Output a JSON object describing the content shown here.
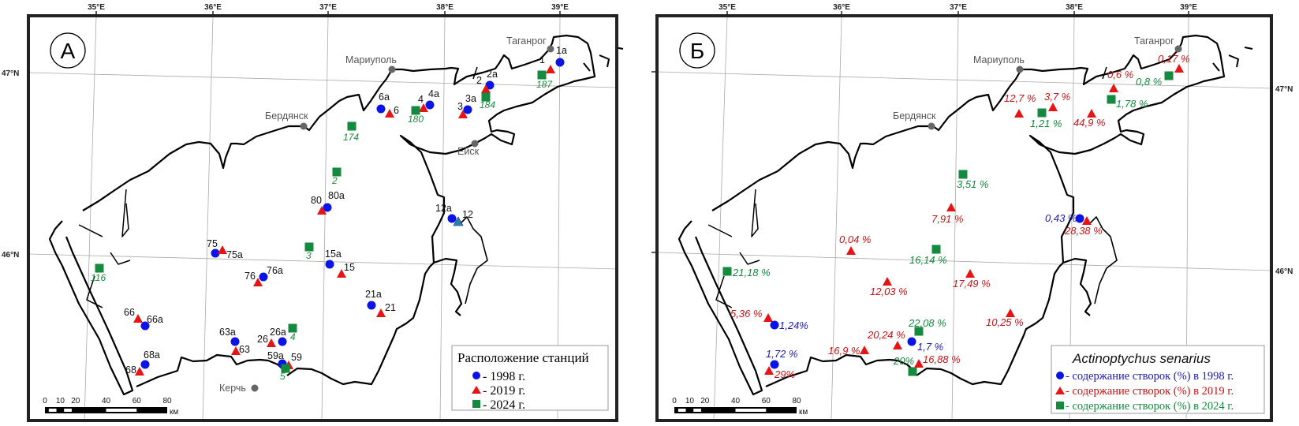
{
  "axes": {
    "lon_ticks": [
      "35°E",
      "36°E",
      "37°E",
      "38°E",
      "39°E"
    ],
    "lat_ticks": [
      "47°N",
      "46°N"
    ]
  },
  "colors": {
    "y1998": "#0a14e6",
    "y2019": "#e61414",
    "y2024": "#138a3e",
    "y2019_label": "#c41414",
    "y1998_label": "#1a1aaa",
    "station12": "#2a7fb8"
  },
  "cities": [
    "Таганрог",
    "Мариуполь",
    "Бердянск",
    "Ейск",
    "Керчь"
  ],
  "scale_bar": {
    "labels": [
      "0",
      "10",
      "20",
      "40",
      "60",
      "80"
    ],
    "unit": "км"
  },
  "panel_a": {
    "letter": "А",
    "stations": [
      {
        "label": "1a",
        "year": "1998"
      },
      {
        "label": "1",
        "year": "2019"
      },
      {
        "label": "187",
        "year": "2024"
      },
      {
        "label": "2a",
        "year": "1998"
      },
      {
        "label": "2",
        "year": "2019"
      },
      {
        "label": "184",
        "year": "2024"
      },
      {
        "label": "3a",
        "year": "1998"
      },
      {
        "label": "3",
        "year": "2019"
      },
      {
        "label": "4a",
        "year": "1998"
      },
      {
        "label": "4",
        "year": "2019"
      },
      {
        "label": "180",
        "year": "2024"
      },
      {
        "label": "6a",
        "year": "1998"
      },
      {
        "label": "6",
        "year": "2019"
      },
      {
        "label": "174",
        "year": "2024"
      },
      {
        "label": "2",
        "year": "2024"
      },
      {
        "label": "80a",
        "year": "1998"
      },
      {
        "label": "80",
        "year": "2019"
      },
      {
        "label": "12a",
        "year": "1998"
      },
      {
        "label": "12",
        "year": "2019"
      },
      {
        "label": "75",
        "year": "1998"
      },
      {
        "label": "75a",
        "year": "2019"
      },
      {
        "label": "3",
        "year": "2024"
      },
      {
        "label": "15a",
        "year": "1998"
      },
      {
        "label": "15",
        "year": "2019"
      },
      {
        "label": "116",
        "year": "2024"
      },
      {
        "label": "76a",
        "year": "1998"
      },
      {
        "label": "76",
        "year": "2019"
      },
      {
        "label": "21a",
        "year": "1998"
      },
      {
        "label": "21",
        "year": "2019"
      },
      {
        "label": "66",
        "year": "2019"
      },
      {
        "label": "66a",
        "year": "1998"
      },
      {
        "label": "4",
        "year": "2024"
      },
      {
        "label": "63a",
        "year": "1998"
      },
      {
        "label": "63",
        "year": "2019"
      },
      {
        "label": "26",
        "year": "2019"
      },
      {
        "label": "26a",
        "year": "1998"
      },
      {
        "label": "59a",
        "year": "1998"
      },
      {
        "label": "59",
        "year": "2019"
      },
      {
        "label": "5",
        "year": "2024"
      },
      {
        "label": "68a",
        "year": "1998"
      },
      {
        "label": "68",
        "year": "2019"
      }
    ],
    "legend": {
      "title": "Расположение станций",
      "items": [
        "- 1998 г.",
        "- 2019 г.",
        "- 2024 г."
      ]
    }
  },
  "panel_b": {
    "letter": "Б",
    "stations": [
      {
        "value": "0,17 %",
        "year": "2019"
      },
      {
        "value": "0,8 %",
        "year": "2024"
      },
      {
        "value": "0,6 %",
        "year": "2019"
      },
      {
        "value": "1,78 %",
        "year": "2024"
      },
      {
        "value": "12,7 %",
        "year": "2019"
      },
      {
        "value": "3,7 %",
        "year": "2019"
      },
      {
        "value": "1,21 %",
        "year": "2024"
      },
      {
        "value": "44,9 %",
        "year": "2019"
      },
      {
        "value": "3,51 %",
        "year": "2024"
      },
      {
        "value": "7,91 %",
        "year": "2019"
      },
      {
        "value": "0,43 %",
        "year": "1998"
      },
      {
        "value": "28,38 %",
        "year": "2019"
      },
      {
        "value": "0,04 %",
        "year": "2019"
      },
      {
        "value": "16,14 %",
        "year": "2024"
      },
      {
        "value": "21,18 %",
        "year": "2024"
      },
      {
        "value": "17,49 %",
        "year": "2019"
      },
      {
        "value": "12,03 %",
        "year": "2019"
      },
      {
        "value": "10,25 %",
        "year": "2019"
      },
      {
        "value": "5,36 %",
        "year": "2019"
      },
      {
        "value": "1,24%",
        "year": "1998"
      },
      {
        "value": "22,08 %",
        "year": "2024"
      },
      {
        "value": "20,24 %",
        "year": "2019"
      },
      {
        "value": "1,7 %",
        "year": "1998"
      },
      {
        "value": "16,9 %",
        "year": "2019"
      },
      {
        "value": "1,72 %",
        "year": "1998"
      },
      {
        "value": "29%",
        "year": "2019"
      },
      {
        "value": "20%",
        "year": "2024"
      },
      {
        "value": "16,88 %",
        "year": "2019"
      }
    ],
    "legend": {
      "title": "Actinoptychus senarius",
      "items": [
        "- содержание створок (%) в 1998 г.",
        "- содержание створок (%) в 2019 г.",
        "- содержание створок (%) в 2024 г."
      ]
    }
  }
}
